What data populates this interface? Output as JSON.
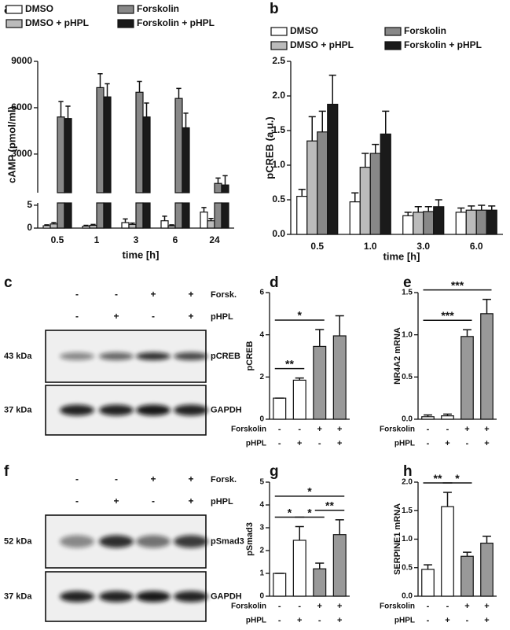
{
  "chart_data": [
    {
      "type": "bar",
      "panel": "a",
      "ylabel": "cAMP (pmol/ml)",
      "xlabel": "time [h]",
      "categories": [
        "0.5",
        "1",
        "3",
        "6",
        "24"
      ],
      "series": [
        {
          "name": "DMSO",
          "color": "#ffffff",
          "values": [
            0.5,
            0.4,
            1.2,
            1.6,
            3.5
          ],
          "errors": [
            0.2,
            0.2,
            0.8,
            1.0,
            1.0
          ]
        },
        {
          "name": "DMSO + pHPL",
          "color": "#bbbbbb",
          "values": [
            0.9,
            0.6,
            0.8,
            0.5,
            1.6
          ],
          "errors": [
            0.3,
            0.2,
            0.3,
            0.2,
            0.5
          ]
        },
        {
          "name": "Forskolin",
          "color": "#888888",
          "values": [
            5400,
            7300,
            7000,
            6600,
            1100
          ],
          "errors": [
            1000,
            900,
            700,
            650,
            350
          ]
        },
        {
          "name": "Forskolin + pHPL",
          "color": "#1a1a1a",
          "values": [
            5300,
            6700,
            5400,
            4700,
            1000
          ],
          "errors": [
            800,
            850,
            900,
            950,
            600
          ]
        }
      ],
      "ylim": [
        500,
        9000
      ],
      "yticks": [
        3000,
        6000,
        9000
      ],
      "ylim_lower": [
        0,
        5.5
      ],
      "yticks_lower": [
        0,
        5
      ]
    },
    {
      "type": "bar",
      "panel": "b",
      "ylabel": "pCREB (a.u.)",
      "xlabel": "time [h]",
      "categories": [
        "0.5",
        "1.0",
        "3.0",
        "6.0"
      ],
      "series": [
        {
          "name": "DMSO",
          "color": "#ffffff",
          "values": [
            0.55,
            0.47,
            0.27,
            0.32
          ],
          "errors": [
            0.1,
            0.13,
            0.05,
            0.06
          ]
        },
        {
          "name": "DMSO + pHPL",
          "color": "#bbbbbb",
          "values": [
            1.35,
            0.97,
            0.32,
            0.35
          ],
          "errors": [
            0.35,
            0.2,
            0.08,
            0.06
          ]
        },
        {
          "name": "Forskolin",
          "color": "#888888",
          "values": [
            1.48,
            1.17,
            0.33,
            0.35
          ],
          "errors": [
            0.3,
            0.13,
            0.07,
            0.07
          ]
        },
        {
          "name": "Forskolin + pHPL",
          "color": "#1a1a1a",
          "values": [
            1.88,
            1.45,
            0.4,
            0.35
          ],
          "errors": [
            0.42,
            0.33,
            0.1,
            0.06
          ]
        }
      ],
      "ylim": [
        0,
        2.5
      ],
      "yticks": [
        {
          "value": 0,
          "label": "0.0"
        },
        {
          "value": 0.5,
          "label": "0.5"
        },
        {
          "value": 1,
          "label": "1.0"
        },
        {
          "value": 1.5,
          "label": "1.5"
        },
        {
          "value": 2,
          "label": "2.0"
        },
        {
          "value": 2.5,
          "label": "2.5"
        }
      ]
    },
    {
      "type": "bar",
      "panel": "d",
      "ylabel": "pCREB",
      "values": [
        1,
        1.85,
        3.45,
        3.95
      ],
      "errors": [
        0,
        0.1,
        0.8,
        0.95
      ],
      "colors": [
        "#ffffff",
        "#ffffff",
        "#999999",
        "#999999"
      ],
      "ylim": [
        0,
        6
      ],
      "yticks": [
        0,
        2,
        4,
        6
      ],
      "conditions": [
        {
          "label": "Forskolin",
          "values": [
            "-",
            "-",
            "+",
            "+"
          ]
        },
        {
          "label": "pHPL",
          "values": [
            "-",
            "+",
            "-",
            "+"
          ]
        }
      ],
      "annotations": [
        {
          "text": "**",
          "span": [
            0,
            1
          ]
        },
        {
          "text": "*",
          "span": [
            0,
            2
          ]
        }
      ]
    },
    {
      "type": "bar",
      "panel": "e",
      "ylabel": "NR4A2 mRNA",
      "values": [
        0.03,
        0.04,
        0.98,
        1.25
      ],
      "errors": [
        0.02,
        0.02,
        0.08,
        0.17
      ],
      "colors": [
        "#ffffff",
        "#ffffff",
        "#999999",
        "#999999"
      ],
      "ylim": [
        0,
        1.5
      ],
      "yticks": [
        {
          "value": 0,
          "label": "0.0"
        },
        {
          "value": 0.5,
          "label": "0.5"
        },
        {
          "value": 1,
          "label": "1.0"
        },
        {
          "value": 1.5,
          "label": "1.5"
        }
      ],
      "conditions": [
        {
          "label": "Forskolin",
          "values": [
            "-",
            "-",
            "+",
            "+"
          ]
        },
        {
          "label": "pHPL",
          "values": [
            "-",
            "+",
            "-",
            "+"
          ]
        }
      ],
      "annotations": [
        {
          "text": "***",
          "span": [
            0,
            2
          ]
        },
        {
          "text": "***",
          "span": [
            0,
            3
          ]
        }
      ]
    },
    {
      "type": "bar",
      "panel": "g",
      "ylabel": "pSmad3",
      "values": [
        1,
        2.45,
        1.2,
        2.7
      ],
      "errors": [
        0,
        0.6,
        0.25,
        0.65
      ],
      "colors": [
        "#ffffff",
        "#ffffff",
        "#999999",
        "#999999"
      ],
      "ylim": [
        0,
        5
      ],
      "yticks": [
        0,
        1,
        2,
        3,
        4,
        5
      ],
      "conditions": [
        {
          "label": "Forskolin",
          "values": [
            "-",
            "-",
            "+",
            "+"
          ]
        },
        {
          "label": "pHPL",
          "values": [
            "-",
            "+",
            "-",
            "+"
          ]
        }
      ],
      "annotations": [
        {
          "text": "*",
          "span": [
            0,
            1
          ]
        },
        {
          "text": "*",
          "span": [
            1,
            2
          ]
        },
        {
          "text": "**",
          "span": [
            2,
            3
          ]
        },
        {
          "text": "*",
          "span": [
            0,
            3
          ]
        }
      ]
    },
    {
      "type": "bar",
      "panel": "h",
      "ylabel": "SERPINE1 mRNA",
      "values": [
        0.47,
        1.57,
        0.7,
        0.93
      ],
      "errors": [
        0.08,
        0.25,
        0.07,
        0.12
      ],
      "colors": [
        "#ffffff",
        "#ffffff",
        "#999999",
        "#999999"
      ],
      "ylim": [
        0,
        2
      ],
      "yticks": [
        {
          "value": 0,
          "label": "0.0"
        },
        {
          "value": 0.5,
          "label": "0.5"
        },
        {
          "value": 1,
          "label": "1.0"
        },
        {
          "value": 1.5,
          "label": "1.5"
        },
        {
          "value": 2,
          "label": "2.0"
        }
      ],
      "conditions": [
        {
          "label": "Forskolin",
          "values": [
            "-",
            "-",
            "+",
            "+"
          ]
        },
        {
          "label": "pHPL",
          "values": [
            "-",
            "+",
            "-",
            "+"
          ]
        }
      ],
      "annotations": [
        {
          "text": "**",
          "span": [
            0,
            1
          ]
        },
        {
          "text": "*",
          "span": [
            1,
            2
          ]
        }
      ]
    }
  ],
  "blots": [
    {
      "panel": "c",
      "rows": [
        {
          "label": "Forsk.",
          "values": [
            "-",
            "-",
            "+",
            "+"
          ]
        },
        {
          "label": "pHPL",
          "values": [
            "-",
            "+",
            "-",
            "+"
          ]
        }
      ],
      "bands": [
        {
          "size": "43 kDa",
          "name": "pCREB"
        },
        {
          "size": "37 kDa",
          "name": "GAPDH"
        }
      ]
    },
    {
      "panel": "f",
      "rows": [
        {
          "label": "Forsk.",
          "values": [
            "-",
            "-",
            "+",
            "+"
          ]
        },
        {
          "label": "pHPL",
          "values": [
            "-",
            "+",
            "-",
            "+"
          ]
        }
      ],
      "bands": [
        {
          "size": "52 kDa",
          "name": "pSmad3"
        },
        {
          "size": "37 kDa",
          "name": "GAPDH"
        }
      ]
    }
  ]
}
